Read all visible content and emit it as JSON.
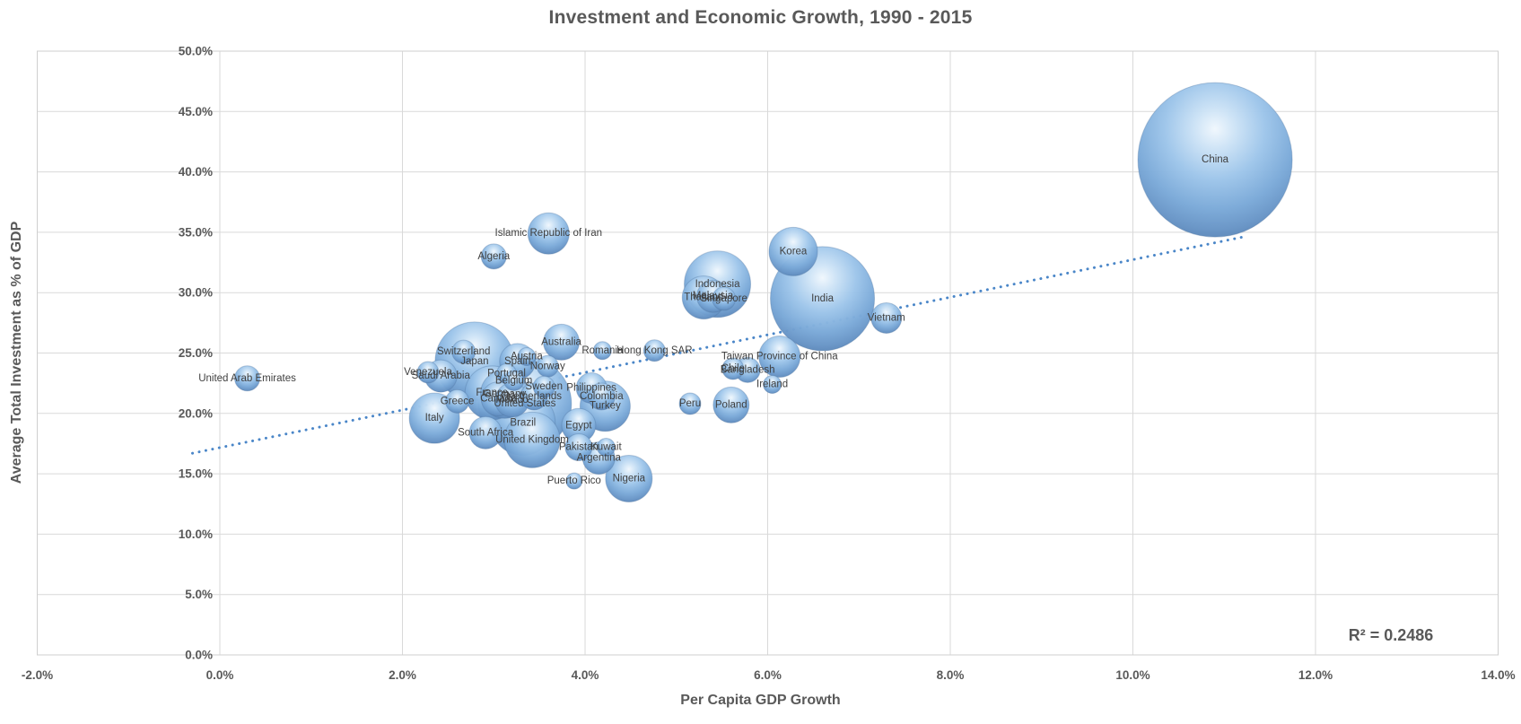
{
  "title": "Investment and Economic Growth, 1990 - 2015",
  "r_squared": "R² = 0.2486",
  "colors": {
    "title_text": "#595959",
    "axis_text": "#595959",
    "label_text": "#3f3f3f",
    "gridline": "#d9d9d9",
    "plot_border": "#cfcfcf",
    "bubble_base": "#7fb0e0",
    "bubble_highlight": "#eef6fd",
    "bubble_rim": "#5a86b8",
    "trendline": "#4a86c8"
  },
  "chart_data": {
    "type": "scatter",
    "subtype": "bubble",
    "title": "Investment and Economic Growth, 1990 - 2015",
    "xlabel": "Per Capita GDP Growth",
    "ylabel": "Average Total Investment as % of GDP",
    "xlim": [
      -2,
      14
    ],
    "ylim": [
      0,
      50
    ],
    "grid": true,
    "x_ticks": [
      {
        "v": -2,
        "label": "-2.0%"
      },
      {
        "v": 0,
        "label": "0.0%"
      },
      {
        "v": 2,
        "label": "2.0%"
      },
      {
        "v": 4,
        "label": "4.0%"
      },
      {
        "v": 6,
        "label": "6.0%"
      },
      {
        "v": 8,
        "label": "8.0%"
      },
      {
        "v": 10,
        "label": "10.0%"
      },
      {
        "v": 12,
        "label": "12.0%"
      },
      {
        "v": 14,
        "label": "14.0%"
      }
    ],
    "y_ticks": [
      {
        "v": 0,
        "label": "0.0%"
      },
      {
        "v": 5,
        "label": "5.0%"
      },
      {
        "v": 10,
        "label": "10.0%"
      },
      {
        "v": 15,
        "label": "15.0%"
      },
      {
        "v": 20,
        "label": "20.0%"
      },
      {
        "v": 25,
        "label": "25.0%"
      },
      {
        "v": 30,
        "label": "30.0%"
      },
      {
        "v": 35,
        "label": "35.0%"
      },
      {
        "v": 40,
        "label": "40.0%"
      },
      {
        "v": 45,
        "label": "45.0%"
      },
      {
        "v": 50,
        "label": "50.0%"
      }
    ],
    "trendline": {
      "style": "dotted",
      "x1": -0.3,
      "y1": 16.7,
      "x2": 11.2,
      "y2": 34.6
    },
    "r_squared_text": "R² = 0.2486",
    "points": [
      {
        "label": "China",
        "x": 10.9,
        "y": 41.0,
        "r": 86
      },
      {
        "label": "India",
        "x": 6.6,
        "y": 29.5,
        "r": 58
      },
      {
        "label": "Korea",
        "x": 6.28,
        "y": 33.4,
        "r": 27
      },
      {
        "label": "Indonesia",
        "x": 5.45,
        "y": 30.7,
        "r": 37
      },
      {
        "label": "Thailand",
        "x": 5.3,
        "y": 29.6,
        "r": 24
      },
      {
        "label": "Malaysia",
        "x": 5.4,
        "y": 29.7,
        "r": 18
      },
      {
        "label": "Singapore",
        "x": 5.52,
        "y": 29.5,
        "r": 13
      },
      {
        "label": "Vietnam",
        "x": 7.3,
        "y": 27.9,
        "r": 17
      },
      {
        "label": "Islamic Republic of Iran",
        "x": 3.6,
        "y": 34.9,
        "r": 23
      },
      {
        "label": "Algeria",
        "x": 3.0,
        "y": 33.0,
        "r": 14
      },
      {
        "label": "United Arab Emirates",
        "x": 0.3,
        "y": 22.9,
        "r": 14
      },
      {
        "label": "Venezuela",
        "x": 2.28,
        "y": 23.4,
        "r": 12
      },
      {
        "label": "Saudi Arabia",
        "x": 2.42,
        "y": 23.1,
        "r": 18
      },
      {
        "label": "Switzerland",
        "x": 2.67,
        "y": 25.1,
        "r": 13
      },
      {
        "label": "Japan",
        "x": 2.79,
        "y": 24.3,
        "r": 44
      },
      {
        "label": "Spain",
        "x": 3.26,
        "y": 24.3,
        "r": 20
      },
      {
        "label": "Austria",
        "x": 3.36,
        "y": 24.7,
        "r": 10
      },
      {
        "label": "Norway",
        "x": 3.59,
        "y": 23.9,
        "r": 12
      },
      {
        "label": "Australia",
        "x": 3.74,
        "y": 25.9,
        "r": 20
      },
      {
        "label": "Romania",
        "x": 4.19,
        "y": 25.2,
        "r": 10
      },
      {
        "label": "Hong Kong SAR",
        "x": 4.76,
        "y": 25.2,
        "r": 12
      },
      {
        "label": "Portugal",
        "x": 3.14,
        "y": 23.3,
        "r": 11
      },
      {
        "label": "Belgium",
        "x": 3.22,
        "y": 22.7,
        "r": 11
      },
      {
        "label": "France",
        "x": 2.98,
        "y": 21.7,
        "r": 30
      },
      {
        "label": "Germany",
        "x": 3.12,
        "y": 21.6,
        "r": 27
      },
      {
        "label": "Canada",
        "x": 3.05,
        "y": 21.2,
        "r": 19
      },
      {
        "label": "Mexico",
        "x": 3.2,
        "y": 21.1,
        "r": 19
      },
      {
        "label": "Netherlands",
        "x": 3.44,
        "y": 21.4,
        "r": 15
      },
      {
        "label": "Sweden",
        "x": 3.55,
        "y": 22.2,
        "r": 12
      },
      {
        "label": "United States",
        "x": 3.34,
        "y": 20.8,
        "r": 52
      },
      {
        "label": "Greece",
        "x": 2.6,
        "y": 21.0,
        "r": 13
      },
      {
        "label": "Italy",
        "x": 2.35,
        "y": 19.6,
        "r": 28
      },
      {
        "label": "Brazil",
        "x": 3.32,
        "y": 19.2,
        "r": 36
      },
      {
        "label": "South Africa",
        "x": 2.91,
        "y": 18.4,
        "r": 18
      },
      {
        "label": "United Kingdom",
        "x": 3.42,
        "y": 17.8,
        "r": 31
      },
      {
        "label": "Egypt",
        "x": 3.93,
        "y": 19.0,
        "r": 19
      },
      {
        "label": "Philippines",
        "x": 4.07,
        "y": 22.1,
        "r": 17
      },
      {
        "label": "Colombia",
        "x": 4.18,
        "y": 21.4,
        "r": 15
      },
      {
        "label": "Turkey",
        "x": 4.22,
        "y": 20.6,
        "r": 28
      },
      {
        "label": "Pakistan",
        "x": 3.93,
        "y": 17.2,
        "r": 15
      },
      {
        "label": "Kuwait",
        "x": 4.23,
        "y": 17.2,
        "r": 10
      },
      {
        "label": "Argentina",
        "x": 4.15,
        "y": 16.3,
        "r": 18
      },
      {
        "label": "Nigeria",
        "x": 4.48,
        "y": 14.6,
        "r": 26
      },
      {
        "label": "Puerto Rico",
        "x": 3.88,
        "y": 14.4,
        "r": 9
      },
      {
        "label": "Peru",
        "x": 5.15,
        "y": 20.8,
        "r": 12
      },
      {
        "label": "Poland",
        "x": 5.6,
        "y": 20.7,
        "r": 20
      },
      {
        "label": "Chile",
        "x": 5.62,
        "y": 23.7,
        "r": 12
      },
      {
        "label": "Bangladesh",
        "x": 5.78,
        "y": 23.6,
        "r": 14
      },
      {
        "label": "Taiwan Province of China",
        "x": 6.13,
        "y": 24.7,
        "r": 23
      },
      {
        "label": "Ireland",
        "x": 6.05,
        "y": 22.4,
        "r": 10
      }
    ]
  }
}
